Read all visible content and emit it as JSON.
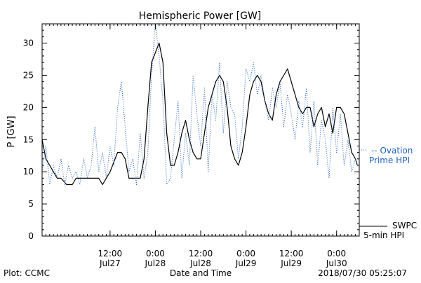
{
  "footer": {
    "plot_credit": "Plot: CCMC",
    "timestamp": "2018/07/30 05:25:07"
  },
  "legend": {
    "ovation_line1": "-- Ovation",
    "ovation_line2": "Prime HPI",
    "swpc_line1": "SWPC",
    "swpc_line2": "5-min HPI"
  },
  "colors": {
    "axes": "#000000",
    "swpc": "#000000",
    "ovation": "#1f5fbf"
  },
  "chart_data": {
    "type": "line",
    "title": "Hemispheric Power [GW]",
    "xlabel": "Date and Time",
    "ylabel": "P [GW]",
    "ylim": [
      0,
      33
    ],
    "xlim": [
      "2018-07-26 18:00",
      "2018-07-30 06:00"
    ],
    "grid": false,
    "legend_position": "right",
    "yticks": [
      0,
      5,
      10,
      15,
      20,
      25,
      30
    ],
    "xticks": [
      {
        "x": "2018-07-27 12:00",
        "time": "12:00",
        "date": "Jul27"
      },
      {
        "x": "2018-07-28 00:00",
        "time": "0:00",
        "date": "Jul28"
      },
      {
        "x": "2018-07-28 12:00",
        "time": "12:00",
        "date": "Jul28"
      },
      {
        "x": "2018-07-29 00:00",
        "time": "0:00",
        "date": "Jul29"
      },
      {
        "x": "2018-07-29 12:00",
        "time": "12:00",
        "date": "Jul29"
      },
      {
        "x": "2018-07-30 00:00",
        "time": "0:00",
        "date": "Jul30"
      }
    ],
    "series": [
      {
        "name": "SWPC 5-min HPI",
        "style": "solid",
        "x": [
          "2018-07-26 18:00",
          "2018-07-26 19:00",
          "2018-07-26 20:00",
          "2018-07-26 21:00",
          "2018-07-26 22:00",
          "2018-07-26 23:00",
          "2018-07-27 00:30",
          "2018-07-27 02:00",
          "2018-07-27 03:00",
          "2018-07-27 04:00",
          "2018-07-27 06:00",
          "2018-07-27 09:00",
          "2018-07-27 10:00",
          "2018-07-27 12:00",
          "2018-07-27 14:00",
          "2018-07-27 15:00",
          "2018-07-27 16:00",
          "2018-07-27 17:00",
          "2018-07-27 18:00",
          "2018-07-27 19:00",
          "2018-07-27 20:00",
          "2018-07-27 21:00",
          "2018-07-27 22:00",
          "2018-07-27 23:00",
          "2018-07-28 01:00",
          "2018-07-28 02:00",
          "2018-07-28 03:00",
          "2018-07-28 04:00",
          "2018-07-28 04:30",
          "2018-07-28 05:00",
          "2018-07-28 06:00",
          "2018-07-28 07:00",
          "2018-07-28 08:00",
          "2018-07-28 09:00",
          "2018-07-28 10:00",
          "2018-07-28 11:00",
          "2018-07-28 11:30",
          "2018-07-28 12:00",
          "2018-07-28 13:00",
          "2018-07-28 14:00",
          "2018-07-28 15:00",
          "2018-07-28 16:00",
          "2018-07-28 17:00",
          "2018-07-28 18:00",
          "2018-07-28 19:00",
          "2018-07-28 20:00",
          "2018-07-28 21:00",
          "2018-07-28 22:00",
          "2018-07-28 23:00",
          "2018-07-29 00:00",
          "2018-07-29 01:00",
          "2018-07-29 02:00",
          "2018-07-29 03:00",
          "2018-07-29 04:00",
          "2018-07-29 05:00",
          "2018-07-29 06:00",
          "2018-07-29 07:00",
          "2018-07-29 08:00",
          "2018-07-29 09:00",
          "2018-07-29 10:00",
          "2018-07-29 11:00",
          "2018-07-29 12:00",
          "2018-07-29 13:00",
          "2018-07-29 14:00",
          "2018-07-29 15:00",
          "2018-07-29 16:00",
          "2018-07-29 17:00",
          "2018-07-29 18:00",
          "2018-07-29 19:00",
          "2018-07-29 20:00",
          "2018-07-29 21:00",
          "2018-07-29 22:00",
          "2018-07-29 23:00",
          "2018-07-30 00:00",
          "2018-07-30 01:00",
          "2018-07-30 02:00",
          "2018-07-30 03:00",
          "2018-07-30 04:00",
          "2018-07-30 05:00",
          "2018-07-30 05:30"
        ],
        "y": [
          15,
          12,
          11,
          10,
          9,
          9,
          8,
          8,
          9,
          9,
          9,
          9,
          8,
          10,
          13,
          13,
          12,
          9,
          9,
          9,
          9,
          12,
          20,
          27,
          30,
          27,
          16,
          11,
          11,
          11,
          13,
          16,
          18,
          15,
          13,
          12,
          12,
          12,
          16,
          20,
          22,
          24,
          25,
          24,
          20,
          14,
          12,
          11,
          13,
          17,
          22,
          24,
          25,
          24,
          21,
          19,
          18,
          22,
          24,
          25,
          26,
          24,
          22,
          20,
          19,
          20,
          20,
          17,
          19,
          20,
          17,
          19,
          16,
          20,
          20,
          19,
          16,
          13,
          12,
          11
        ],
        "color": "#000000"
      },
      {
        "name": "Ovation Prime HPI",
        "style": "dotted",
        "x": [
          "2018-07-26 18:00",
          "2018-07-26 19:00",
          "2018-07-26 20:00",
          "2018-07-26 21:00",
          "2018-07-26 22:00",
          "2018-07-26 23:00",
          "2018-07-27 00:00",
          "2018-07-27 01:00",
          "2018-07-27 02:00",
          "2018-07-27 03:00",
          "2018-07-27 04:00",
          "2018-07-27 05:00",
          "2018-07-27 06:00",
          "2018-07-27 07:00",
          "2018-07-27 08:00",
          "2018-07-27 09:00",
          "2018-07-27 10:00",
          "2018-07-27 11:00",
          "2018-07-27 12:00",
          "2018-07-27 13:00",
          "2018-07-27 14:00",
          "2018-07-27 15:00",
          "2018-07-27 16:00",
          "2018-07-27 17:00",
          "2018-07-27 18:00",
          "2018-07-27 19:00",
          "2018-07-27 20:00",
          "2018-07-27 21:00",
          "2018-07-27 22:00",
          "2018-07-27 23:00",
          "2018-07-28 00:00",
          "2018-07-28 01:00",
          "2018-07-28 02:00",
          "2018-07-28 03:00",
          "2018-07-28 04:00",
          "2018-07-28 05:00",
          "2018-07-28 06:00",
          "2018-07-28 07:00",
          "2018-07-28 08:00",
          "2018-07-28 09:00",
          "2018-07-28 10:00",
          "2018-07-28 11:00",
          "2018-07-28 12:00",
          "2018-07-28 13:00",
          "2018-07-28 14:00",
          "2018-07-28 15:00",
          "2018-07-28 16:00",
          "2018-07-28 17:00",
          "2018-07-28 18:00",
          "2018-07-28 19:00",
          "2018-07-28 20:00",
          "2018-07-28 21:00",
          "2018-07-28 22:00",
          "2018-07-28 23:00",
          "2018-07-29 00:00",
          "2018-07-29 01:00",
          "2018-07-29 02:00",
          "2018-07-29 03:00",
          "2018-07-29 04:00",
          "2018-07-29 05:00",
          "2018-07-29 06:00",
          "2018-07-29 07:00",
          "2018-07-29 08:00",
          "2018-07-29 09:00",
          "2018-07-29 10:00",
          "2018-07-29 11:00",
          "2018-07-29 12:00",
          "2018-07-29 13:00",
          "2018-07-29 14:00",
          "2018-07-29 15:00",
          "2018-07-29 16:00",
          "2018-07-29 17:00",
          "2018-07-29 18:00",
          "2018-07-29 19:00",
          "2018-07-29 20:00",
          "2018-07-29 21:00",
          "2018-07-29 22:00",
          "2018-07-29 23:00",
          "2018-07-30 00:00",
          "2018-07-30 01:00",
          "2018-07-30 02:00",
          "2018-07-30 03:00",
          "2018-07-30 04:00",
          "2018-07-30 05:00",
          "2018-07-30 05:30"
        ],
        "y": [
          10,
          14,
          8,
          11,
          9,
          12,
          8,
          11,
          9,
          10,
          8,
          12,
          9,
          11,
          17,
          10,
          13,
          9,
          14,
          11,
          20,
          24,
          17,
          10,
          12,
          8,
          16,
          9,
          13,
          25,
          33,
          28,
          21,
          8,
          9,
          15,
          21,
          9,
          16,
          11,
          25,
          19,
          14,
          23,
          10,
          22,
          18,
          27,
          16,
          24,
          20,
          19,
          12,
          17,
          26,
          24,
          27,
          22,
          25,
          21,
          18,
          23,
          20,
          24,
          17,
          22,
          19,
          15,
          21,
          17,
          23,
          13,
          21,
          11,
          18,
          15,
          9,
          20,
          13,
          19,
          11,
          15,
          10,
          12,
          11
        ],
        "color": "#1f5fbf"
      }
    ]
  }
}
